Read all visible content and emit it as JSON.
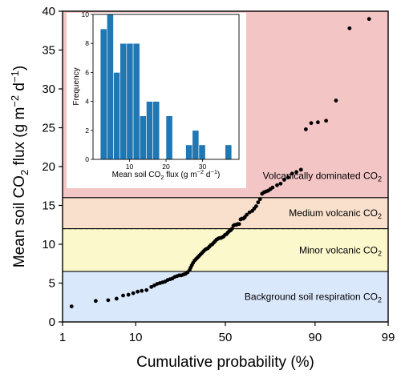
{
  "chart_data": [
    {
      "type": "scatter",
      "xlabel": "Cumulative probability (%)",
      "ylabel": "Mean soil CO",
      "ylabel_sub": "2",
      "ylabel_unit": " flux (g m",
      "ylabel_unit_sup1": "−2",
      "ylabel_unit_mid": " d",
      "ylabel_unit_sup2": "−1",
      "ylabel_unit_end": ")",
      "x_scale": "probability",
      "x_ticks": [
        1,
        10,
        50,
        90,
        99
      ],
      "x_tick_labels": [
        "1",
        "10",
        "50",
        "90",
        "99"
      ],
      "ylim": [
        0,
        40
      ],
      "y_ticks": [
        0,
        5,
        10,
        15,
        20,
        25,
        30,
        35,
        40
      ],
      "grid": false,
      "regions": [
        {
          "label": "Background soil respiration CO",
          "label_sub": "2",
          "y0": 0,
          "y1": 6.5,
          "color": "#dae8fc"
        },
        {
          "label": "Minor volcanic CO",
          "label_sub": "2",
          "y0": 6.5,
          "y1": 12,
          "color": "#fbf8cc"
        },
        {
          "label": "Medium volcanic CO",
          "label_sub": "2",
          "y0": 12,
          "y1": 16,
          "color": "#f9e0cc"
        },
        {
          "label": "Volcanically dominated CO",
          "label_sub": "2",
          "y0": 16,
          "y1": 40,
          "color": "#f4c5c5"
        }
      ],
      "dashed_line_y": 12,
      "series": [
        {
          "x": [
            1.4,
            3.2,
            4.7,
            6.0,
            7.2,
            8.3,
            9.4,
            10.5,
            11.6,
            13.0,
            14.5,
            15.5,
            16.5,
            17.5,
            18.5,
            19.5,
            20.5,
            21.5,
            22.5,
            23.5,
            24.5,
            25.5,
            26.5,
            27.5,
            28.5,
            29.5,
            30.5,
            31.0,
            31.6,
            32.2,
            33.0,
            33.8,
            34.6,
            35.4,
            36.2,
            37.0,
            37.8,
            38.6,
            39.4,
            40.2,
            41.0,
            41.8,
            42.6,
            43.4,
            44.2,
            45.0,
            45.8,
            46.6,
            47.4,
            48.2,
            49.0,
            49.8,
            50.6,
            51.4,
            52.2,
            53.0,
            53.8,
            54.6,
            55.4,
            56.2,
            57.0,
            57.8,
            58.6,
            59.4,
            60.2,
            61.0,
            62.0,
            63.5,
            65.0,
            66.0,
            67.0,
            68.0,
            69.0,
            70.0,
            71.0,
            72.0,
            73.0,
            74.0,
            75.0,
            77.0,
            78.5,
            80.0,
            81.5,
            83.0,
            84.5,
            86.0,
            87.5,
            89.0,
            90.7,
            92.5,
            94.3,
            96.2,
            98.0
          ],
          "y": [
            2.0,
            2.7,
            2.8,
            3.0,
            3.4,
            3.5,
            3.7,
            3.9,
            4.0,
            4.1,
            4.5,
            4.7,
            4.9,
            5.0,
            5.1,
            5.2,
            5.4,
            5.5,
            5.6,
            5.8,
            5.9,
            6.0,
            6.0,
            6.1,
            6.2,
            6.4,
            6.7,
            7.0,
            7.3,
            7.6,
            7.9,
            8.1,
            8.3,
            8.5,
            8.7,
            8.9,
            9.1,
            9.3,
            9.4,
            9.5,
            9.7,
            9.9,
            10.0,
            10.2,
            10.4,
            10.6,
            10.7,
            10.8,
            10.8,
            10.9,
            11.0,
            11.2,
            11.3,
            11.5,
            11.7,
            11.8,
            12.0,
            12.4,
            12.5,
            12.5,
            12.6,
            12.6,
            13.2,
            13.3,
            13.3,
            13.5,
            13.8,
            14.1,
            14.3,
            14.6,
            14.9,
            15.4,
            15.8,
            16.5,
            16.7,
            16.8,
            16.9,
            17.1,
            17.3,
            17.6,
            17.8,
            18.3,
            18.6,
            19.1,
            19.3,
            19.6,
            24.8,
            25.6,
            25.7,
            25.9,
            28.5,
            37.8,
            39.0
          ],
          "color": "#000000"
        }
      ]
    },
    {
      "type": "bar",
      "subtype": "histogram",
      "xlabel": "Mean soil CO",
      "xlabel_sub": "2",
      "xlabel_unit": " flux (g m",
      "xlabel_unit_sup1": "−2",
      "xlabel_unit_mid": " d",
      "xlabel_unit_sup2": "−1",
      "xlabel_unit_end": ")",
      "ylabel": "Frequency",
      "xlim": [
        0,
        40
      ],
      "ylim": [
        0,
        10
      ],
      "x_ticks": [
        10,
        20,
        30
      ],
      "y_ticks": [
        0,
        2,
        4,
        6,
        8,
        10
      ],
      "bin_width": 1.8,
      "bin_starts": [
        2.0,
        3.8,
        5.6,
        7.4,
        9.2,
        11.0,
        12.8,
        14.6,
        16.4,
        18.2,
        20.0,
        21.8,
        23.6,
        25.4,
        27.2,
        29.0,
        30.8,
        32.6,
        34.4,
        36.2
      ],
      "values": [
        9,
        10,
        6,
        8,
        8,
        8,
        3,
        4,
        4,
        0,
        3,
        0,
        0,
        1,
        2,
        1,
        0,
        0,
        0,
        1
      ],
      "color": "#1f77b4"
    }
  ]
}
